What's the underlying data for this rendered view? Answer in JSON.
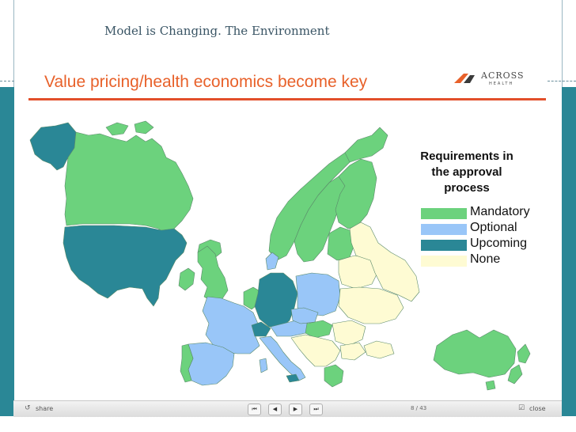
{
  "slide_title": "Model is Changing. The Environment",
  "slide": {
    "heading": "Value pricing/health economics become key",
    "logo": {
      "name": "ACROSS",
      "tagline": "HEALTH"
    },
    "legend": {
      "title_lines": [
        "Requirements in",
        "the approval",
        "process"
      ],
      "items": [
        {
          "label": "Mandatory",
          "color": "#6cd27d"
        },
        {
          "label": "Optional",
          "color": "#99c6f8"
        },
        {
          "label": "Upcoming",
          "color": "#2a8796"
        },
        {
          "label": "None",
          "color": "#fefbd3"
        }
      ]
    }
  },
  "toolbar": {
    "share_label": "share",
    "page_indicator": "8 / 43",
    "close_label": "close",
    "nav": {
      "first_icon": "skip-back-icon",
      "prev_icon": "previous-icon",
      "play_icon": "play-icon",
      "last_icon": "skip-forward-icon"
    }
  }
}
